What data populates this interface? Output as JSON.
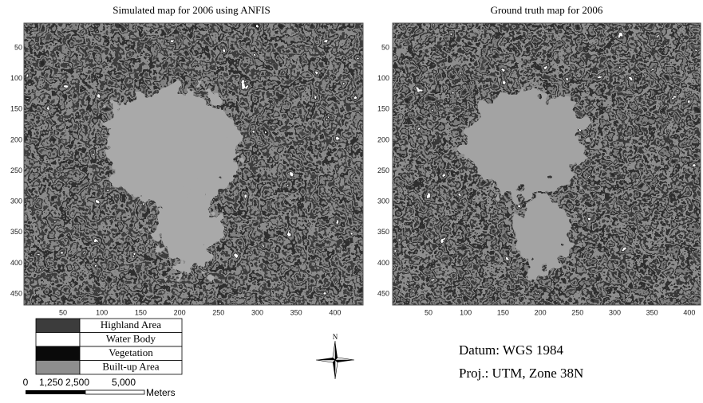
{
  "maps": [
    {
      "title": "Simulated map for 2006 using ANFIS",
      "xticks": [
        50,
        100,
        150,
        200,
        250,
        300,
        350,
        400
      ],
      "yticks": [
        50,
        100,
        150,
        200,
        250,
        300,
        350,
        400,
        450
      ]
    },
    {
      "title": "Ground truth map for 2006",
      "xticks": [
        50,
        100,
        150,
        200,
        250,
        300,
        350,
        400
      ],
      "yticks": [
        50,
        100,
        150,
        200,
        250,
        300,
        350,
        400,
        450
      ]
    }
  ],
  "legend": [
    {
      "label": "Highland Area",
      "color": "#3c3c3c"
    },
    {
      "label": "Water Body",
      "color": "#ffffff"
    },
    {
      "label": "Vegetation",
      "color": "#0a0a0a"
    },
    {
      "label": "Built-up Area",
      "color": "#8e8e8e"
    }
  ],
  "scale_bar": {
    "labels": [
      "0",
      "1,250",
      "2,500",
      "5,000"
    ],
    "unit": "Meters"
  },
  "north_label": "N",
  "datum": "Datum: WGS 1984",
  "projection": "Proj.: UTM, Zone 38N"
}
